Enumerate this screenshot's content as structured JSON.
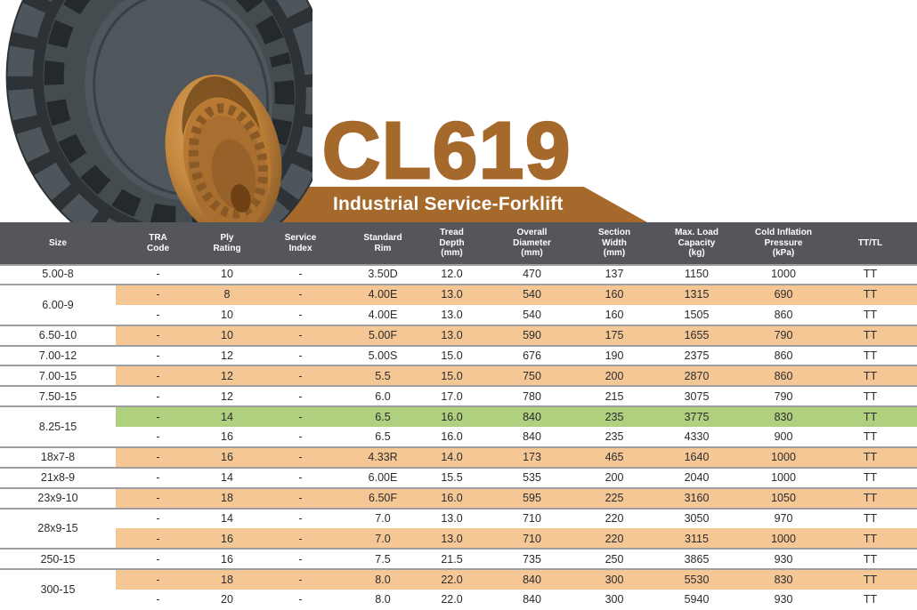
{
  "product": {
    "model": "CL619",
    "category": "Industrial Service-Forklift"
  },
  "colors": {
    "accent_brown": "#A5692B",
    "header_bg": "#55565B",
    "row_orange": "#F4C795",
    "row_highlight_green": "#AFD07E",
    "border_gray": "#9E9EA0",
    "row_text": "#2B2B2E"
  },
  "table": {
    "headers": [
      "Size",
      "TRA\nCode",
      "Ply\nRating",
      "Service\nIndex",
      "Standard\nRim",
      "Tread\nDepth\n(mm)",
      "Overall\nDiameter\n(mm)",
      "Section\nWidth\n(mm)",
      "Max. Load\nCapacity\n(kg)",
      "Cold Inflation\nPressure\n(kPa)",
      "TT/TL"
    ],
    "groups": [
      {
        "size": "5.00-8",
        "rows": [
          {
            "highlight": "none",
            "cells": [
              "-",
              "10",
              "-",
              "3.50D",
              "12.0",
              "470",
              "137",
              "1150",
              "1000",
              "TT"
            ]
          }
        ]
      },
      {
        "size": "6.00-9",
        "rows": [
          {
            "highlight": "orange",
            "cells": [
              "-",
              "8",
              "-",
              "4.00E",
              "13.0",
              "540",
              "160",
              "1315",
              "690",
              "TT"
            ]
          },
          {
            "highlight": "none",
            "cells": [
              "-",
              "10",
              "-",
              "4.00E",
              "13.0",
              "540",
              "160",
              "1505",
              "860",
              "TT"
            ]
          }
        ]
      },
      {
        "size": "6.50-10",
        "rows": [
          {
            "highlight": "orange",
            "cells": [
              "-",
              "10",
              "-",
              "5.00F",
              "13.0",
              "590",
              "175",
              "1655",
              "790",
              "TT"
            ]
          }
        ]
      },
      {
        "size": "7.00-12",
        "rows": [
          {
            "highlight": "none",
            "cells": [
              "-",
              "12",
              "-",
              "5.00S",
              "15.0",
              "676",
              "190",
              "2375",
              "860",
              "TT"
            ]
          }
        ]
      },
      {
        "size": "7.00-15",
        "rows": [
          {
            "highlight": "orange",
            "cells": [
              "-",
              "12",
              "-",
              "5.5",
              "15.0",
              "750",
              "200",
              "2870",
              "860",
              "TT"
            ]
          }
        ]
      },
      {
        "size": "7.50-15",
        "rows": [
          {
            "highlight": "none",
            "cells": [
              "-",
              "12",
              "-",
              "6.0",
              "17.0",
              "780",
              "215",
              "3075",
              "790",
              "TT"
            ]
          }
        ]
      },
      {
        "size": "8.25-15",
        "rows": [
          {
            "highlight": "green",
            "cells": [
              "-",
              "14",
              "-",
              "6.5",
              "16.0",
              "840",
              "235",
              "3775",
              "830",
              "TT"
            ]
          },
          {
            "highlight": "none",
            "cells": [
              "-",
              "16",
              "-",
              "6.5",
              "16.0",
              "840",
              "235",
              "4330",
              "900",
              "TT"
            ]
          }
        ]
      },
      {
        "size": "18x7-8",
        "rows": [
          {
            "highlight": "orange",
            "cells": [
              "-",
              "16",
              "-",
              "4.33R",
              "14.0",
              "173",
              "465",
              "1640",
              "1000",
              "TT"
            ]
          }
        ]
      },
      {
        "size": "21x8-9",
        "rows": [
          {
            "highlight": "none",
            "cells": [
              "-",
              "14",
              "-",
              "6.00E",
              "15.5",
              "535",
              "200",
              "2040",
              "1000",
              "TT"
            ]
          }
        ]
      },
      {
        "size": "23x9-10",
        "rows": [
          {
            "highlight": "orange",
            "cells": [
              "-",
              "18",
              "-",
              "6.50F",
              "16.0",
              "595",
              "225",
              "3160",
              "1050",
              "TT"
            ]
          }
        ]
      },
      {
        "size": "28x9-15",
        "rows": [
          {
            "highlight": "none",
            "cells": [
              "-",
              "14",
              "-",
              "7.0",
              "13.0",
              "710",
              "220",
              "3050",
              "970",
              "TT"
            ]
          },
          {
            "highlight": "orange",
            "cells": [
              "-",
              "16",
              "-",
              "7.0",
              "13.0",
              "710",
              "220",
              "3115",
              "1000",
              "TT"
            ]
          }
        ]
      },
      {
        "size": "250-15",
        "rows": [
          {
            "highlight": "none",
            "cells": [
              "-",
              "16",
              "-",
              "7.5",
              "21.5",
              "735",
              "250",
              "3865",
              "930",
              "TT"
            ]
          }
        ]
      },
      {
        "size": "300-15",
        "rows": [
          {
            "highlight": "orange",
            "cells": [
              "-",
              "18",
              "-",
              "8.0",
              "22.0",
              "840",
              "300",
              "5530",
              "830",
              "TT"
            ]
          },
          {
            "highlight": "none",
            "cells": [
              "-",
              "20",
              "-",
              "8.0",
              "22.0",
              "840",
              "300",
              "5940",
              "930",
              "TT"
            ]
          }
        ]
      }
    ]
  }
}
